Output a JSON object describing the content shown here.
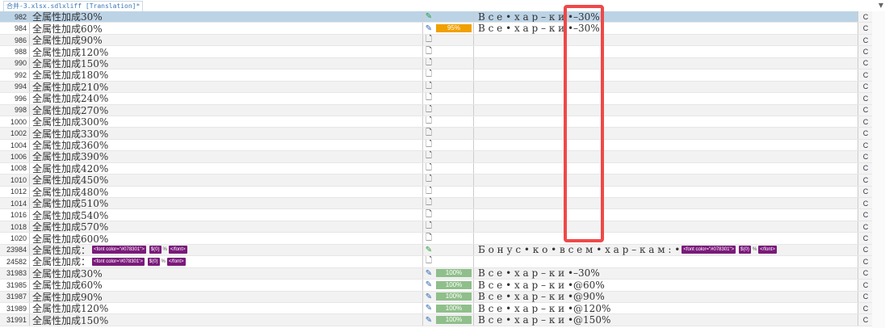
{
  "tab": {
    "title": "合并-3.xlsx.sdlxliff [Translation]*"
  },
  "colors": {
    "selected_row": "#bcd3e6",
    "match95": "#f0a000",
    "match100": "#8fbf8a",
    "tag": "#7a1a7a",
    "highlight_box": "#f04848"
  },
  "rows": [
    {
      "num": "982",
      "source": "全属性加成30%",
      "status": "translated-icon",
      "match": "",
      "target": "В с е • х а р – к и •–30%",
      "col": "C",
      "selected": true
    },
    {
      "num": "984",
      "source": "全属性加成60%",
      "status": "edit-icon",
      "match": "95%",
      "target": "В с е • х а р – к и •–30%",
      "col": "C"
    },
    {
      "num": "986",
      "source": "全属性加成90%",
      "status": "empty-doc-icon",
      "match": "",
      "target": "",
      "col": "C"
    },
    {
      "num": "988",
      "source": "全属性加成120%",
      "status": "empty-doc-icon",
      "match": "",
      "target": "",
      "col": "C"
    },
    {
      "num": "990",
      "source": "全属性加成150%",
      "status": "empty-doc-icon",
      "match": "",
      "target": "",
      "col": "C"
    },
    {
      "num": "992",
      "source": "全属性加成180%",
      "status": "empty-doc-icon",
      "match": "",
      "target": "",
      "col": "C"
    },
    {
      "num": "994",
      "source": "全属性加成210%",
      "status": "empty-doc-icon",
      "match": "",
      "target": "",
      "col": "C"
    },
    {
      "num": "996",
      "source": "全属性加成240%",
      "status": "empty-doc-icon",
      "match": "",
      "target": "",
      "col": "C"
    },
    {
      "num": "998",
      "source": "全属性加成270%",
      "status": "empty-doc-icon",
      "match": "",
      "target": "",
      "col": "C"
    },
    {
      "num": "1000",
      "source": "全属性加成300%",
      "status": "empty-doc-icon",
      "match": "",
      "target": "",
      "col": "C"
    },
    {
      "num": "1002",
      "source": "全属性加成330%",
      "status": "empty-doc-icon",
      "match": "",
      "target": "",
      "col": "C"
    },
    {
      "num": "1004",
      "source": "全属性加成360%",
      "status": "empty-doc-icon",
      "match": "",
      "target": "",
      "col": "C"
    },
    {
      "num": "1006",
      "source": "全属性加成390%",
      "status": "empty-doc-icon",
      "match": "",
      "target": "",
      "col": "C"
    },
    {
      "num": "1008",
      "source": "全属性加成420%",
      "status": "empty-doc-icon",
      "match": "",
      "target": "",
      "col": "C"
    },
    {
      "num": "1010",
      "source": "全属性加成450%",
      "status": "empty-doc-icon",
      "match": "",
      "target": "",
      "col": "C"
    },
    {
      "num": "1012",
      "source": "全属性加成480%",
      "status": "empty-doc-icon",
      "match": "",
      "target": "",
      "col": "C"
    },
    {
      "num": "1014",
      "source": "全属性加成510%",
      "status": "empty-doc-icon",
      "match": "",
      "target": "",
      "col": "C"
    },
    {
      "num": "1016",
      "source": "全属性加成540%",
      "status": "empty-doc-icon",
      "match": "",
      "target": "",
      "col": "C"
    },
    {
      "num": "1018",
      "source": "全属性加成570%",
      "status": "empty-doc-icon",
      "match": "",
      "target": "",
      "col": "C"
    },
    {
      "num": "1020",
      "source": "全属性加成600%",
      "status": "empty-doc-icon",
      "match": "",
      "target": "",
      "col": "C"
    },
    {
      "num": "23984",
      "source": "全属性加成：",
      "source_tags": [
        "<font color=\"#078301\">",
        "$(0)",
        "%",
        "</font>"
      ],
      "status": "translated-icon",
      "match": "",
      "target": "Б о н у с • к о • в с е м • х а р – к а м : •",
      "target_tags": [
        "<font color=\"#078301\">",
        "$(0)",
        "%",
        "</font>"
      ],
      "col": "C"
    },
    {
      "num": "24582",
      "source": "全属性加成：",
      "source_tags": [
        "<font color='#078301'>",
        "$(0)",
        "%",
        "</font>"
      ],
      "status": "empty-doc-icon",
      "match": "",
      "target": "",
      "col": "C"
    },
    {
      "num": "31983",
      "source": "全属性加成30%",
      "status": "edit-icon",
      "match": "100%",
      "target": "В с е • х а р – к и •–30%",
      "col": "C"
    },
    {
      "num": "31985",
      "source": "全属性加成60%",
      "status": "edit-icon",
      "match": "100%",
      "target": "В с е • х а р – к и •@60%",
      "col": "C"
    },
    {
      "num": "31987",
      "source": "全属性加成90%",
      "status": "edit-icon",
      "match": "100%",
      "target": "В с е • х а р – к и •@90%",
      "col": "C"
    },
    {
      "num": "31989",
      "source": "全属性加成120%",
      "status": "edit-icon",
      "match": "100%",
      "target": "В с е • х а р – к и •@120%",
      "col": "C"
    },
    {
      "num": "31991",
      "source": "全属性加成150%",
      "status": "edit-icon",
      "match": "100%",
      "target": "В с е • х а р – к и •@150%",
      "col": "C"
    }
  ]
}
